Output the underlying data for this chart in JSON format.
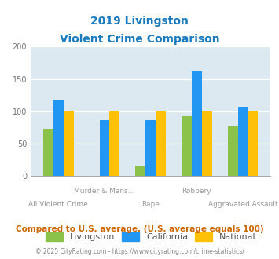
{
  "title_line1": "2019 Livingston",
  "title_line2": "Violent Crime Comparison",
  "series": {
    "Livingston": [
      73,
      0,
      16,
      93,
      77
    ],
    "California": [
      117,
      86,
      87,
      162,
      107
    ],
    "National": [
      100,
      100,
      100,
      100,
      100
    ]
  },
  "colors": {
    "Livingston": "#8bc34a",
    "California": "#2196f3",
    "National": "#ffc107"
  },
  "upper_labels": {
    "1": "Murder & Mans...",
    "3": "Robbery"
  },
  "lower_labels": {
    "0": "All Violent Crime",
    "2": "Rape",
    "4": "Aggravated Assault"
  },
  "ylim": [
    0,
    200
  ],
  "yticks": [
    0,
    50,
    100,
    150,
    200
  ],
  "plot_bg_color": "#dce9f0",
  "title_color": "#1a7abf",
  "footer_text": "Compared to U.S. average. (U.S. average equals 100)",
  "footer_color": "#cc6600",
  "credit_text": "© 2025 CityRating.com - https://www.cityrating.com/crime-statistics/",
  "credit_color": "#888888",
  "grid_color": "#ffffff",
  "bar_width": 0.22
}
